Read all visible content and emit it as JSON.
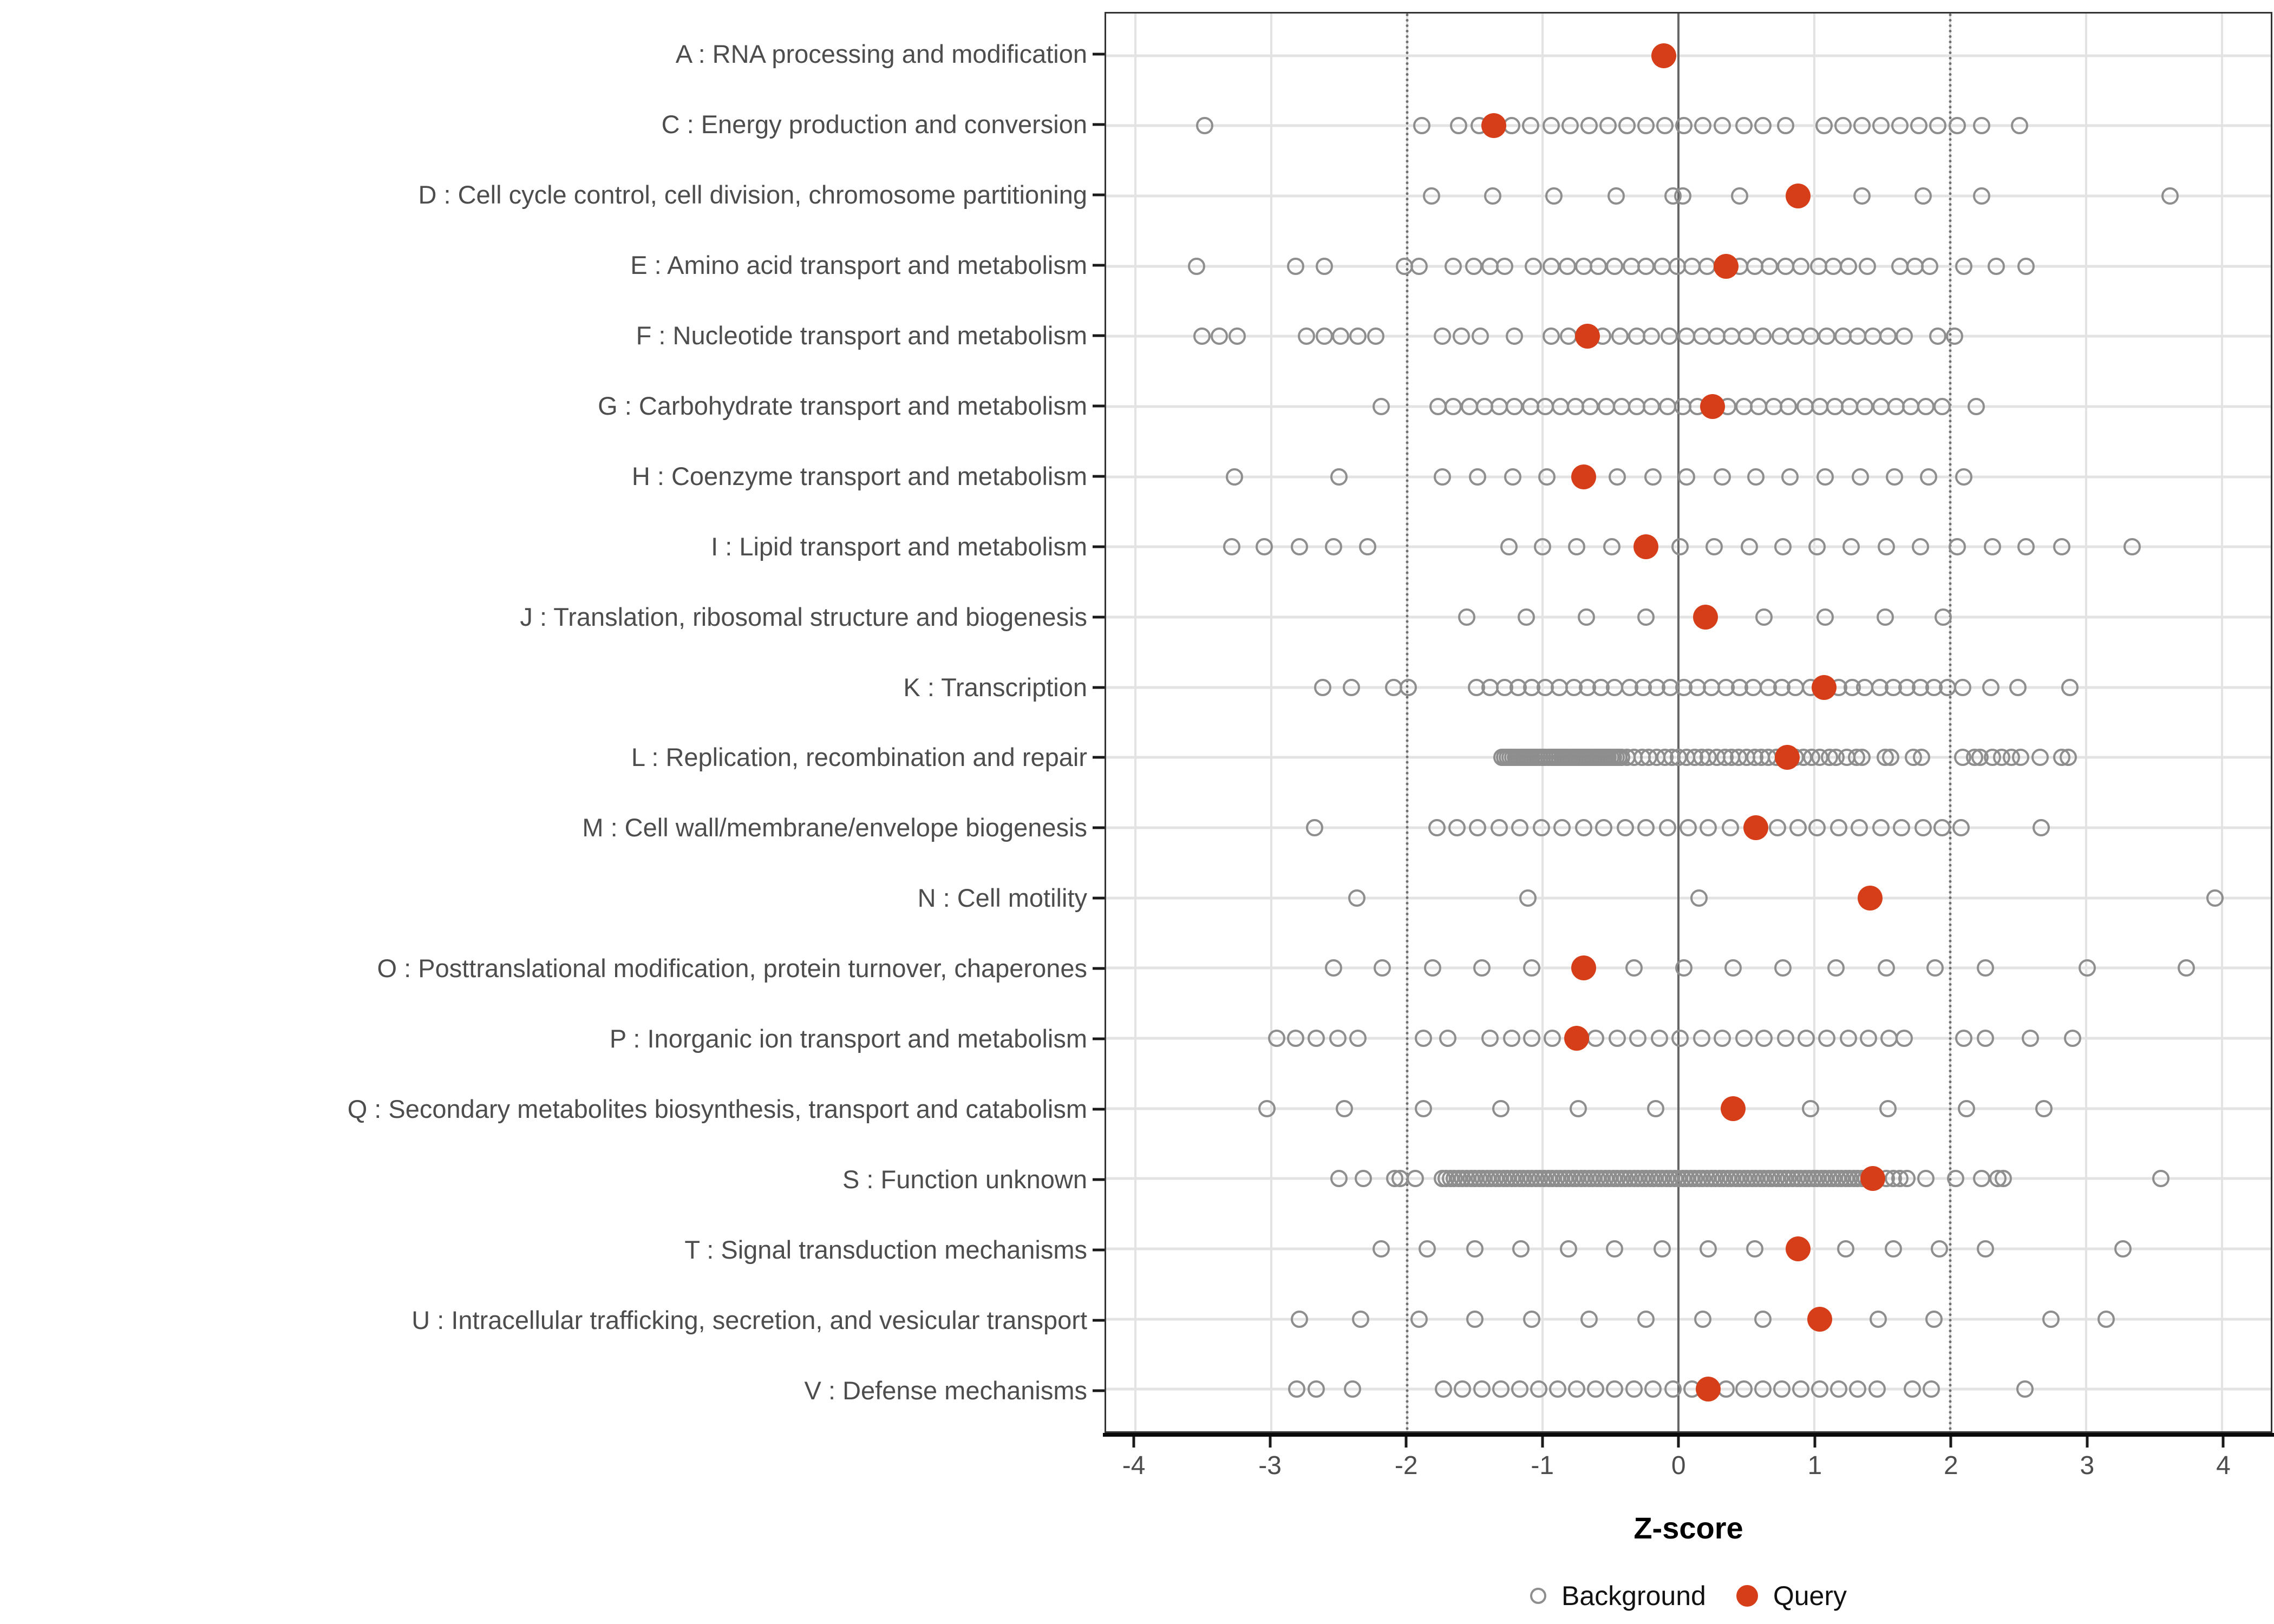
{
  "colors": {
    "query": "#d53e18",
    "background_stroke": "#8e8e8e",
    "grid": "#e3e3e3",
    "zero_line": "#666666",
    "dashed_line": "#707070",
    "panel_border": "#333333",
    "label_text": "#4d4d4d"
  },
  "chart_data": {
    "type": "scatter",
    "title": "",
    "xlabel": "Z-score",
    "ylabel": "",
    "xlim": [
      -4.215,
      4.36
    ],
    "x_ticks": [
      -4,
      -3,
      -2,
      -1,
      0,
      1,
      2,
      3,
      4
    ],
    "reference_lines": {
      "solid": [
        0
      ],
      "dashed": [
        -2,
        2
      ]
    },
    "grid": "on",
    "legend_position": "bottom",
    "legend": [
      {
        "label": "Background",
        "marker": "open-circle"
      },
      {
        "label": "Query",
        "marker": "filled-circle"
      }
    ],
    "categories": [
      {
        "code": "A",
        "label": "A : RNA processing and modification",
        "query": -0.11,
        "background": []
      },
      {
        "code": "C",
        "label": "C : Energy production and conversion",
        "query": -1.36,
        "background": [
          -3.49,
          -1.89,
          -1.62,
          -1.47,
          -1.23,
          -1.09,
          -0.94,
          -0.8,
          -0.66,
          -0.52,
          -0.38,
          -0.24,
          -0.1,
          0.04,
          0.18,
          0.32,
          0.48,
          0.62,
          0.79,
          1.07,
          1.21,
          1.35,
          1.49,
          1.63,
          1.77,
          1.91,
          2.05,
          2.23,
          2.51
        ]
      },
      {
        "code": "D",
        "label": "D : Cell cycle control, cell division, chromosome partitioning",
        "query": 0.88,
        "background": [
          -1.82,
          -1.37,
          -0.92,
          -0.46,
          -0.04,
          0.03,
          0.45,
          1.35,
          1.8,
          2.23,
          3.62
        ]
      },
      {
        "code": "E",
        "label": "E : Amino acid transport and metabolism",
        "query": 0.35,
        "background": [
          -3.55,
          -2.82,
          -2.61,
          -2.02,
          -1.91,
          -1.66,
          -1.51,
          -1.39,
          -1.28,
          -1.07,
          -0.94,
          -0.82,
          -0.7,
          -0.59,
          -0.47,
          -0.35,
          -0.24,
          -0.12,
          -0.01,
          0.1,
          0.21,
          0.45,
          0.56,
          0.67,
          0.79,
          0.9,
          1.03,
          1.14,
          1.25,
          1.39,
          1.63,
          1.74,
          1.85,
          2.1,
          2.34,
          2.56
        ]
      },
      {
        "code": "F",
        "label": "F : Nucleotide transport and metabolism",
        "query": -0.67,
        "background": [
          -3.51,
          -3.38,
          -3.25,
          -2.74,
          -2.61,
          -2.49,
          -2.36,
          -2.23,
          -1.74,
          -1.6,
          -1.46,
          -1.21,
          -0.94,
          -0.81,
          -0.56,
          -0.43,
          -0.31,
          -0.2,
          -0.07,
          0.06,
          0.17,
          0.28,
          0.39,
          0.5,
          0.62,
          0.75,
          0.86,
          0.97,
          1.09,
          1.21,
          1.32,
          1.43,
          1.54,
          1.66,
          1.91,
          2.03
        ]
      },
      {
        "code": "G",
        "label": "G : Carbohydrate transport and metabolism",
        "query": 0.25,
        "background": [
          -2.19,
          -1.77,
          -1.66,
          -1.54,
          -1.43,
          -1.32,
          -1.21,
          -1.09,
          -0.98,
          -0.87,
          -0.76,
          -0.65,
          -0.53,
          -0.42,
          -0.31,
          -0.2,
          -0.08,
          0.03,
          0.14,
          0.36,
          0.48,
          0.59,
          0.7,
          0.81,
          0.93,
          1.04,
          1.15,
          1.26,
          1.37,
          1.49,
          1.6,
          1.71,
          1.82,
          1.94,
          2.19
        ]
      },
      {
        "code": "H",
        "label": "H : Coenzyme transport and metabolism",
        "query": -0.7,
        "background": [
          -3.27,
          -2.5,
          -1.74,
          -1.48,
          -1.22,
          -0.97,
          -0.45,
          -0.19,
          0.06,
          0.32,
          0.57,
          0.82,
          1.08,
          1.34,
          1.59,
          1.84,
          2.1
        ]
      },
      {
        "code": "I",
        "label": "I : Lipid transport and metabolism",
        "query": -0.24,
        "background": [
          -3.29,
          -3.05,
          -2.79,
          -2.54,
          -2.29,
          -1.25,
          -1.0,
          -0.75,
          -0.49,
          0.01,
          0.26,
          0.52,
          0.77,
          1.02,
          1.27,
          1.53,
          1.78,
          2.05,
          2.31,
          2.56,
          2.82,
          3.34
        ]
      },
      {
        "code": "J",
        "label": "J : Translation, ribosomal structure and biogenesis",
        "query": 0.2,
        "background": [
          -1.56,
          -1.12,
          -0.68,
          -0.24,
          0.63,
          1.08,
          1.52,
          1.95
        ]
      },
      {
        "code": "K",
        "label": "K : Transcription",
        "query": 1.07,
        "background": [
          -2.62,
          -2.41,
          -2.1,
          -1.99,
          -1.49,
          -1.39,
          -1.28,
          -1.18,
          -1.08,
          -0.98,
          -0.88,
          -0.77,
          -0.67,
          -0.57,
          -0.47,
          -0.36,
          -0.26,
          -0.16,
          -0.06,
          0.04,
          0.14,
          0.24,
          0.35,
          0.45,
          0.55,
          0.66,
          0.76,
          0.86,
          0.97,
          1.18,
          1.28,
          1.37,
          1.48,
          1.58,
          1.68,
          1.78,
          1.88,
          1.98,
          2.09,
          2.3,
          2.5,
          2.88
        ]
      },
      {
        "code": "L",
        "label": "L : Replication, recombination and repair",
        "query": 0.8,
        "background": [
          -1.3,
          -1.28,
          -1.26,
          -1.24,
          -1.22,
          -1.2,
          -1.18,
          -1.16,
          -1.14,
          -1.12,
          -1.1,
          -1.08,
          -1.06,
          -1.04,
          -1.02,
          -1.0,
          -0.98,
          -0.96,
          -0.94,
          -0.92,
          -0.9,
          -0.88,
          -0.86,
          -0.84,
          -0.82,
          -0.8,
          -0.78,
          -0.76,
          -0.74,
          -0.72,
          -0.7,
          -0.68,
          -0.66,
          -0.64,
          -0.62,
          -0.6,
          -0.58,
          -0.56,
          -0.54,
          -0.52,
          -0.5,
          -0.48,
          -0.46,
          -0.44,
          -0.42,
          -0.38,
          -0.33,
          -0.27,
          -0.22,
          -0.16,
          -0.1,
          -0.05,
          0.0,
          0.06,
          0.12,
          0.17,
          0.22,
          0.28,
          0.34,
          0.39,
          0.44,
          0.5,
          0.56,
          0.61,
          0.66,
          0.72,
          0.78,
          0.86,
          0.92,
          0.98,
          1.04,
          1.11,
          1.16,
          1.24,
          1.31,
          1.35,
          1.52,
          1.56,
          1.73,
          1.79,
          2.09,
          2.18,
          2.22,
          2.31,
          2.38,
          2.45,
          2.52,
          2.66,
          2.82,
          2.87
        ]
      },
      {
        "code": "M",
        "label": "M : Cell wall/membrane/envelope biogenesis",
        "query": 0.57,
        "background": [
          -2.68,
          -1.78,
          -1.63,
          -1.48,
          -1.32,
          -1.17,
          -1.01,
          -0.86,
          -0.7,
          -0.55,
          -0.39,
          -0.24,
          -0.08,
          0.07,
          0.22,
          0.38,
          0.73,
          0.88,
          1.02,
          1.18,
          1.33,
          1.49,
          1.64,
          1.8,
          1.94,
          2.08,
          2.67
        ]
      },
      {
        "code": "N",
        "label": "N : Cell motility",
        "query": 1.41,
        "background": [
          -2.37,
          -1.11,
          0.15,
          3.95
        ]
      },
      {
        "code": "O",
        "label": "O : Posttranslational modification, protein turnover, chaperones",
        "query": -0.7,
        "background": [
          -2.54,
          -2.18,
          -1.81,
          -1.45,
          -1.08,
          -0.33,
          0.04,
          0.4,
          0.77,
          1.16,
          1.53,
          1.89,
          2.26,
          3.01,
          3.74
        ]
      },
      {
        "code": "P",
        "label": "P : Inorganic ion transport and metabolism",
        "query": -0.75,
        "background": [
          -2.96,
          -2.82,
          -2.67,
          -2.51,
          -2.36,
          -1.88,
          -1.7,
          -1.39,
          -1.23,
          -1.08,
          -0.93,
          -0.61,
          -0.45,
          -0.3,
          -0.14,
          0.01,
          0.17,
          0.32,
          0.48,
          0.63,
          0.79,
          0.94,
          1.09,
          1.25,
          1.4,
          1.55,
          1.66,
          2.1,
          2.26,
          2.59,
          2.9
        ]
      },
      {
        "code": "Q",
        "label": "Q : Secondary metabolites biosynthesis, transport and catabolism",
        "query": 0.4,
        "background": [
          -3.03,
          -2.46,
          -1.88,
          -1.31,
          -0.74,
          -0.17,
          0.97,
          1.54,
          2.12,
          2.69
        ]
      },
      {
        "code": "S",
        "label": "S : Function unknown",
        "query": 1.43,
        "background": [
          -2.5,
          -2.32,
          -2.09,
          -2.05,
          -1.94,
          -1.74,
          -1.71,
          -1.68,
          -1.65,
          -1.62,
          -1.59,
          -1.56,
          -1.53,
          -1.5,
          -1.47,
          -1.44,
          -1.41,
          -1.38,
          -1.35,
          -1.32,
          -1.29,
          -1.26,
          -1.23,
          -1.2,
          -1.17,
          -1.14,
          -1.11,
          -1.08,
          -1.05,
          -1.02,
          -0.99,
          -0.96,
          -0.93,
          -0.9,
          -0.87,
          -0.84,
          -0.81,
          -0.78,
          -0.75,
          -0.72,
          -0.69,
          -0.66,
          -0.63,
          -0.6,
          -0.57,
          -0.54,
          -0.51,
          -0.48,
          -0.45,
          -0.42,
          -0.39,
          -0.36,
          -0.33,
          -0.3,
          -0.27,
          -0.24,
          -0.21,
          -0.18,
          -0.15,
          -0.12,
          -0.09,
          -0.06,
          -0.03,
          0.0,
          0.03,
          0.06,
          0.09,
          0.12,
          0.15,
          0.18,
          0.21,
          0.24,
          0.27,
          0.3,
          0.33,
          0.36,
          0.39,
          0.42,
          0.45,
          0.48,
          0.51,
          0.54,
          0.57,
          0.6,
          0.63,
          0.66,
          0.69,
          0.72,
          0.75,
          0.78,
          0.81,
          0.84,
          0.87,
          0.9,
          0.93,
          0.96,
          0.99,
          1.02,
          1.05,
          1.08,
          1.11,
          1.14,
          1.17,
          1.2,
          1.23,
          1.26,
          1.29,
          1.32,
          1.35,
          1.38,
          1.53,
          1.58,
          1.63,
          1.68,
          1.82,
          2.04,
          2.23,
          2.35,
          2.39,
          3.55
        ]
      },
      {
        "code": "T",
        "label": "T : Signal transduction mechanisms",
        "query": 0.88,
        "background": [
          -2.19,
          -1.85,
          -1.5,
          -1.16,
          -0.81,
          -0.47,
          -0.12,
          0.22,
          0.56,
          1.23,
          1.58,
          1.92,
          2.26,
          3.27
        ]
      },
      {
        "code": "U",
        "label": "U : Intracellular trafficking, secretion, and vesicular transport",
        "query": 1.04,
        "background": [
          -2.79,
          -2.34,
          -1.91,
          -1.5,
          -1.08,
          -0.66,
          -0.24,
          0.18,
          0.62,
          1.47,
          1.88,
          2.74,
          3.15
        ]
      },
      {
        "code": "V",
        "label": "V : Defense mechanisms",
        "query": 0.22,
        "background": [
          -2.81,
          -2.67,
          -2.4,
          -1.73,
          -1.59,
          -1.45,
          -1.31,
          -1.17,
          -1.03,
          -0.89,
          -0.75,
          -0.61,
          -0.47,
          -0.33,
          -0.19,
          -0.04,
          0.1,
          0.35,
          0.48,
          0.62,
          0.76,
          0.9,
          1.04,
          1.18,
          1.32,
          1.46,
          1.72,
          1.86,
          2.55
        ]
      }
    ]
  }
}
